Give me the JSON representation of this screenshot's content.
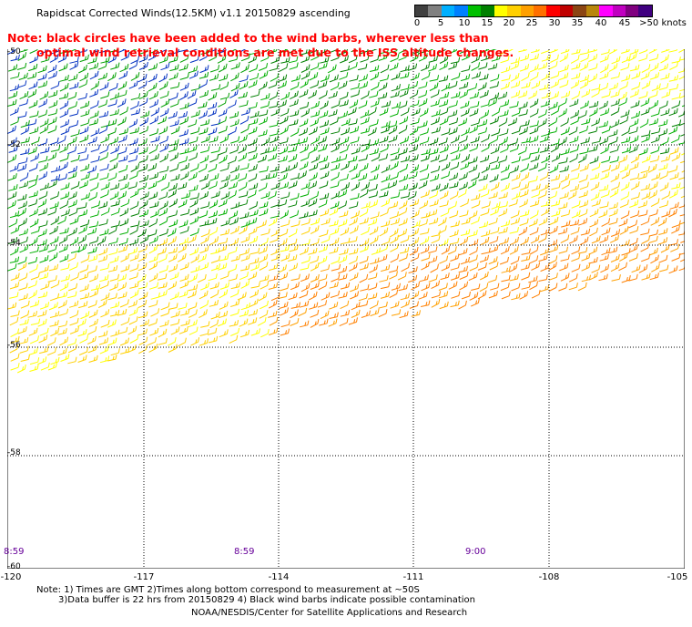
{
  "title": "Rapidscat Corrected Winds(12.5KM) v1.1 20150829 ascending",
  "note_line1": "Note: black circles have been added to the wind barbs, wherever less than",
  "note_line2": "optimal wind retrieval conditions are met due to the ISS altitude changes.",
  "legend": {
    "labels": [
      "0",
      "5",
      "10",
      "15",
      "20",
      "25",
      "30",
      "35",
      "40",
      "45",
      ">50 knots"
    ],
    "colors": [
      "#404040",
      "#808080",
      "#00b0ff",
      "#0080ff",
      "#00c000",
      "#008000",
      "#ffff00",
      "#ffd000",
      "#ffa000",
      "#ff7000",
      "#ff0000",
      "#c00000",
      "#8b4513",
      "#b8860b",
      "#ff00ff",
      "#c000c0",
      "#800080",
      "#400080"
    ]
  },
  "lat_labels": [
    "-50",
    "-52",
    "-54",
    "-56",
    "-58",
    "-60"
  ],
  "lon_labels": [
    "-120",
    "-117",
    "-114",
    "-111",
    "-108",
    "-105"
  ],
  "time_labels": [
    "8:59",
    "8:59",
    "9:00"
  ],
  "footer": {
    "line1": "Note: 1) Times are GMT 2)Times along bottom correspond to measurement at ~50S",
    "line2": "3)Data buffer is 22 hrs from 20150829 4) Black wind barbs indicate possible contamination",
    "line3": "NOAA/NESDIS/Center for Satellite Applications and Research"
  }
}
